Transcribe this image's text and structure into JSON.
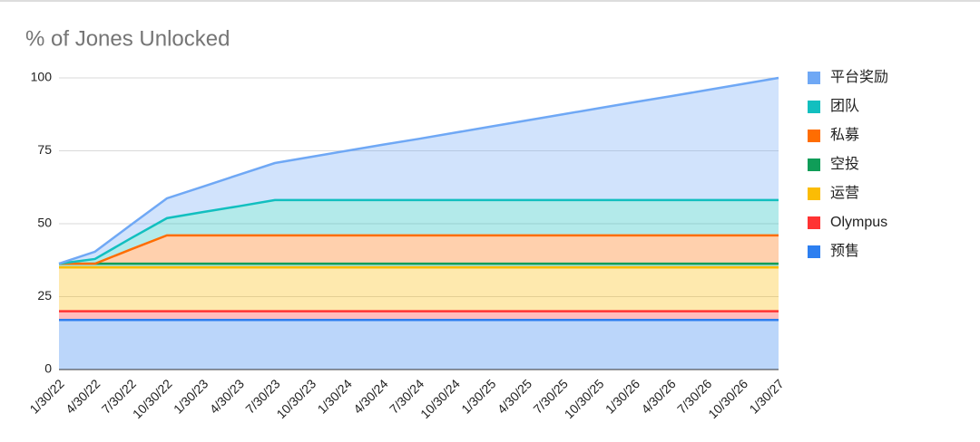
{
  "chart_data": {
    "type": "stacked_area",
    "title": "% of Jones Unlocked",
    "categories": [
      "1/30/22",
      "4/30/22",
      "7/30/22",
      "10/30/22",
      "1/30/23",
      "4/30/23",
      "7/30/23",
      "10/30/23",
      "1/30/24",
      "4/30/24",
      "7/30/24",
      "10/30/24",
      "1/30/25",
      "4/30/25",
      "7/30/25",
      "10/30/25",
      "1/30/26",
      "4/30/26",
      "7/30/26",
      "10/30/26",
      "1/30/27"
    ],
    "series": [
      {
        "name": "平台奖励",
        "color": "#6fa8f5",
        "values": [
          0,
          2.5,
          4.6,
          6.8,
          8.7,
          10.8,
          12.7,
          14.8,
          16.9,
          19.0,
          21.0,
          23.1,
          25.2,
          27.3,
          29.4,
          31.5,
          33.6,
          35.6,
          37.7,
          39.8,
          41.9
        ]
      },
      {
        "name": "团队",
        "color": "#12bfbf",
        "values": [
          0,
          1.6,
          3.8,
          5.9,
          8,
          10,
          12.1,
          12.1,
          12.1,
          12.1,
          12.1,
          12.1,
          12.1,
          12.1,
          12.1,
          12.1,
          12.1,
          12.1,
          12.1,
          12.1,
          12.1
        ]
      },
      {
        "name": "私募",
        "color": "#ff6d01",
        "values": [
          0,
          0,
          4.9,
          9.7,
          9.7,
          9.7,
          9.7,
          9.7,
          9.7,
          9.7,
          9.7,
          9.7,
          9.7,
          9.7,
          9.7,
          9.7,
          9.7,
          9.7,
          9.7,
          9.7,
          9.7
        ]
      },
      {
        "name": "空投",
        "color": "#0f9d58",
        "values": [
          1.3,
          1.3,
          1.3,
          1.3,
          1.3,
          1.3,
          1.3,
          1.3,
          1.3,
          1.3,
          1.3,
          1.3,
          1.3,
          1.3,
          1.3,
          1.3,
          1.3,
          1.3,
          1.3,
          1.3,
          1.3
        ]
      },
      {
        "name": "运营",
        "color": "#fbbc04",
        "values": [
          15,
          15,
          15,
          15,
          15,
          15,
          15,
          15,
          15,
          15,
          15,
          15,
          15,
          15,
          15,
          15,
          15,
          15,
          15,
          15,
          15
        ]
      },
      {
        "name": "Olympus",
        "color": "#ff3333",
        "values": [
          3,
          3,
          3,
          3,
          3,
          3,
          3,
          3,
          3,
          3,
          3,
          3,
          3,
          3,
          3,
          3,
          3,
          3,
          3,
          3,
          3
        ]
      },
      {
        "name": "预售",
        "color": "#2d7ff0",
        "values": [
          17,
          17,
          17,
          17,
          17,
          17,
          17,
          17,
          17,
          17,
          17,
          17,
          17,
          17,
          17,
          17,
          17,
          17,
          17,
          17,
          17
        ]
      }
    ],
    "ylim": [
      0,
      100
    ],
    "yticks": [
      0,
      25,
      50,
      75,
      100
    ],
    "grid": true
  }
}
